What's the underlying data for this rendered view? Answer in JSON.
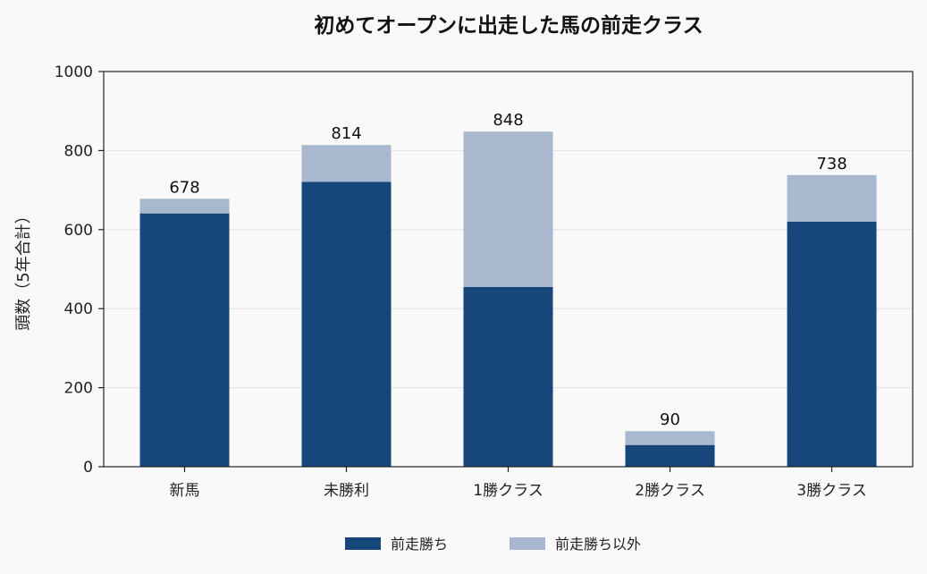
{
  "chart_data": {
    "type": "bar",
    "stacked": true,
    "title": "初めてオープンに出走した馬の前走クラス",
    "xlabel": "",
    "ylabel": "頭数（5年合計）",
    "categories": [
      "新馬",
      "未勝利",
      "1勝クラス",
      "2勝クラス",
      "3勝クラス"
    ],
    "series": [
      {
        "name": "前走勝ち",
        "values": [
          641,
          721,
          455,
          55,
          620
        ],
        "color": "#17467a"
      },
      {
        "name": "前走勝ち以外",
        "values": [
          37,
          93,
          393,
          35,
          118
        ],
        "color": "#a8b9cf"
      }
    ],
    "totals": [
      678,
      814,
      848,
      90,
      738
    ],
    "ylim": [
      0,
      1000
    ],
    "yticks": [
      0,
      200,
      400,
      600,
      800,
      1000
    ],
    "grid": "horizontal",
    "legend_position": "bottom-center"
  }
}
